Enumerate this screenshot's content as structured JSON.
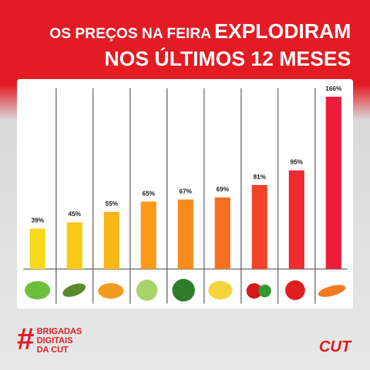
{
  "title": {
    "part1": "OS PREÇOS NA FEIRA",
    "part2": "EXPLODIRAM",
    "line2": "NOS ÚLTIMOS 12 MESES"
  },
  "chart_data": {
    "type": "bar",
    "categories": [
      null,
      null,
      null,
      null,
      null,
      null,
      null,
      null,
      null
    ],
    "values": [
      39,
      45,
      55,
      65,
      67,
      69,
      81,
      95,
      166
    ],
    "value_labels": [
      "39%",
      "45%",
      "55%",
      "65%",
      "67%",
      "69%",
      "81%",
      "95%",
      "166%"
    ],
    "colors": [
      "#f9d71c",
      "#fac912",
      "#fbb516",
      "#fb9a17",
      "#fa8a1a",
      "#f8701f",
      "#f4412a",
      "#f02a33",
      "#ee1c3a"
    ]
  },
  "footer": {
    "hash": "#",
    "brigadas": [
      "BRIGADAS",
      "DIGITAIS",
      "DA CUT"
    ],
    "logo": "CUT"
  }
}
